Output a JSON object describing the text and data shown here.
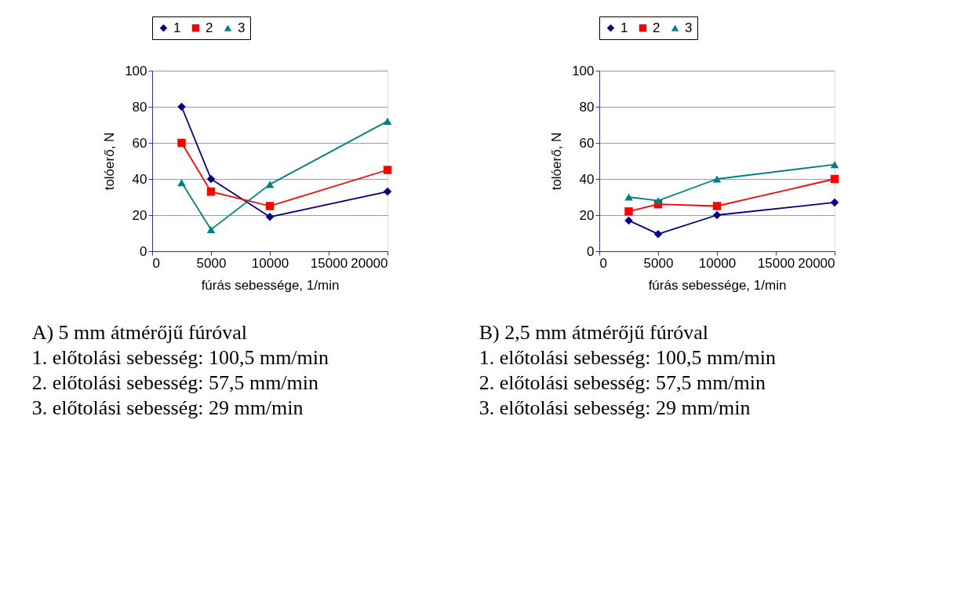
{
  "chart_data": [
    {
      "type": "line",
      "xlabel": "fúrás sebessége, 1/min",
      "ylabel": "tolóerő, N",
      "x": [
        2500,
        5000,
        10000,
        20000
      ],
      "xlim": [
        0,
        20000
      ],
      "xticks": [
        0,
        5000,
        10000,
        15000,
        20000
      ],
      "ylim": [
        0,
        100
      ],
      "yticks": [
        0,
        20,
        40,
        60,
        80,
        100
      ],
      "grid": "y",
      "legend": "top",
      "line_style": "solid",
      "series": [
        {
          "name": "1",
          "color": "#000080",
          "marker": "diamond",
          "values": [
            80,
            40,
            19,
            33
          ]
        },
        {
          "name": "2",
          "color": "#ff0000",
          "marker": "square",
          "values": [
            60,
            33,
            25,
            45
          ]
        },
        {
          "name": "3",
          "color": "#008080",
          "marker": "triangle",
          "values": [
            38,
            12,
            37,
            72
          ]
        }
      ],
      "annotations": [
        "A) 5 mm átmérőjű fúróval",
        "1. előtolási sebesség: 100,5 mm/min",
        "2. előtolási sebesség: 57,5 mm/min",
        "3. előtolási sebesség: 29 mm/min"
      ]
    },
    {
      "type": "line",
      "xlabel": "fúrás sebessége, 1/min",
      "ylabel": "tolóerő, N",
      "x": [
        2500,
        5000,
        10000,
        20000
      ],
      "xlim": [
        0,
        20000
      ],
      "xticks": [
        0,
        5000,
        10000,
        15000,
        20000
      ],
      "ylim": [
        0,
        100
      ],
      "yticks": [
        0,
        20,
        40,
        60,
        80,
        100
      ],
      "grid": "y",
      "legend": "top",
      "line_style": "solid",
      "series": [
        {
          "name": "1",
          "color": "#000080",
          "marker": "diamond",
          "values": [
            17,
            9.5,
            20,
            27
          ]
        },
        {
          "name": "2",
          "color": "#ff0000",
          "marker": "square",
          "values": [
            22,
            26,
            25,
            40
          ]
        },
        {
          "name": "3",
          "color": "#008080",
          "marker": "triangle",
          "values": [
            30,
            28,
            40,
            48
          ]
        }
      ],
      "annotations": [
        "B) 2,5 mm átmérőjű fúróval",
        "1. előtolási sebesség: 100,5 mm/min",
        "2. előtolási sebesség: 57,5 mm/min",
        "3. előtolási sebesség: 29 mm/min"
      ]
    }
  ]
}
